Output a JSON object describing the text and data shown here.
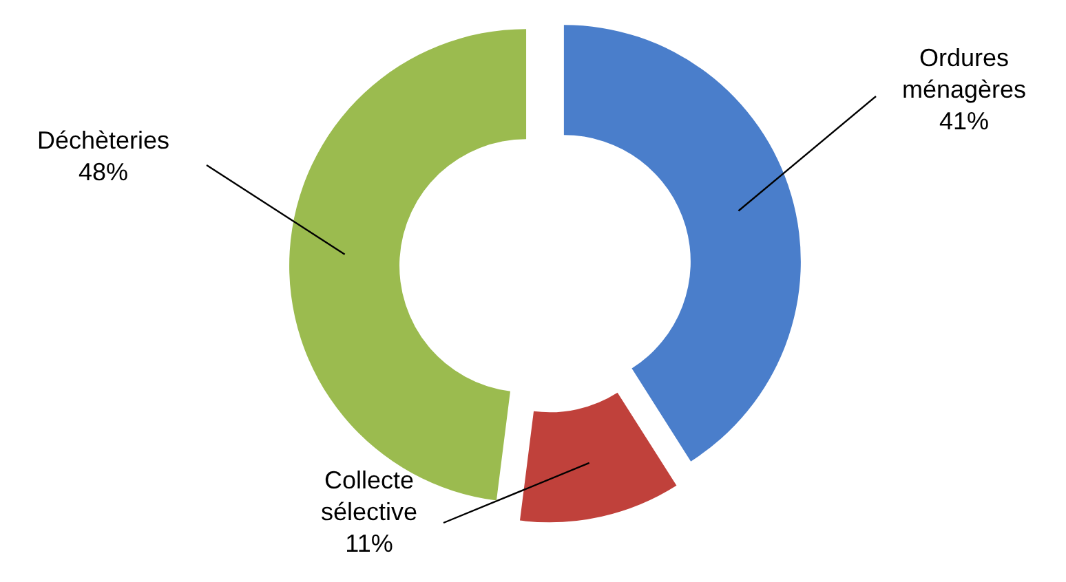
{
  "chart_data": {
    "type": "donut",
    "categories": [
      "Ordures ménagères",
      "Collecte sélective",
      "Déchèteries"
    ],
    "values": [
      41,
      11,
      48
    ],
    "colors": [
      "#4a7ecb",
      "#c0413b",
      "#9bbb4f"
    ],
    "value_labels": [
      "41%",
      "11%",
      "48%"
    ]
  }
}
